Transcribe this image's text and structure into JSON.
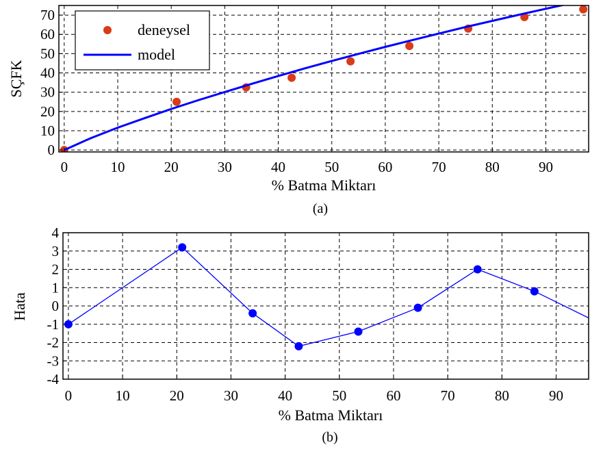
{
  "chart_data": [
    {
      "type": "scatter",
      "caption": "(a)",
      "xlabel": "% Batma Miktarı",
      "ylabel": "SÇFK",
      "xlim": [
        -1,
        98
      ],
      "ylim": [
        -1,
        75
      ],
      "xticks": [
        0,
        10,
        20,
        30,
        40,
        50,
        60,
        70,
        80,
        90
      ],
      "yticks": [
        0,
        10,
        20,
        30,
        40,
        50,
        60,
        70
      ],
      "grid": true,
      "legend": {
        "placement": "top-left",
        "entries": [
          "deneysel",
          "model"
        ]
      },
      "series": [
        {
          "name": "deneysel",
          "kind": "markers",
          "color": "#d93b17",
          "x": [
            0,
            21,
            34,
            42.5,
            53.5,
            64.5,
            75.5,
            86,
            97
          ],
          "y": [
            0,
            25,
            32.5,
            37.5,
            46,
            54,
            63,
            69,
            73
          ]
        },
        {
          "name": "model",
          "kind": "line",
          "color": "#0000ff",
          "x": [
            0,
            5,
            10,
            15,
            20,
            25,
            30,
            35,
            40,
            45,
            50,
            55,
            60,
            65,
            70,
            75,
            80,
            85,
            90,
            95,
            98
          ],
          "y": [
            0,
            6.2,
            11.6,
            16.5,
            21.3,
            25.8,
            30.1,
            34.3,
            38.4,
            42.4,
            46.2,
            49.9,
            53.5,
            57,
            60.4,
            63.8,
            67,
            70.2,
            73.3,
            76.3,
            78
          ]
        }
      ]
    },
    {
      "type": "line",
      "caption": "(b)",
      "xlabel": "% Batma Miktarı",
      "ylabel": "Hata",
      "xlim": [
        -1,
        96
      ],
      "ylim": [
        -4,
        4
      ],
      "xticks": [
        0,
        10,
        20,
        30,
        40,
        50,
        60,
        70,
        80,
        90
      ],
      "yticks": [
        -4,
        -3,
        -2,
        -1,
        0,
        1,
        2,
        3,
        4
      ],
      "grid": true,
      "series": [
        {
          "kind": "line-markers",
          "color": "#0000ff",
          "x": [
            0,
            21,
            34,
            42.5,
            53.5,
            64.5,
            75.5,
            86,
            97
          ],
          "y": [
            -1,
            3.2,
            -0.4,
            -2.2,
            -1.4,
            -0.1,
            2,
            0.8,
            -0.8
          ]
        }
      ]
    }
  ]
}
